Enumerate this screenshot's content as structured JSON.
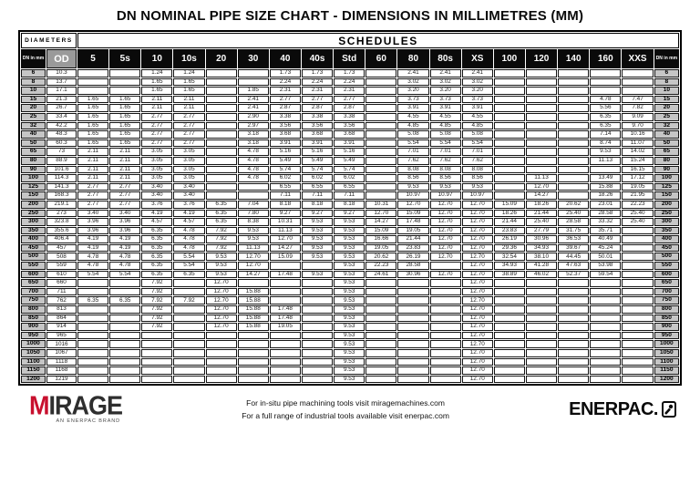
{
  "title": "DN NOMINAL PIPE SIZE CHART - DIMENSIONS IN MILLIMETRES (MM)",
  "table": {
    "diameters_label": "DIAMETERS",
    "schedules_label": "SCHEDULES",
    "dn_header": "DN in mm",
    "od_header": "OD",
    "schedule_headers": [
      "5",
      "5s",
      "10",
      "10s",
      "20",
      "30",
      "40",
      "40s",
      "Std",
      "60",
      "80",
      "80s",
      "XS",
      "100",
      "120",
      "140",
      "160",
      "XXS"
    ],
    "rows": [
      {
        "dn": "6",
        "od": "10.3",
        "v": [
          "",
          "",
          "1.24",
          "1.24",
          "",
          "",
          "1.73",
          "1.73",
          "1.73",
          "",
          "2.41",
          "2.41",
          "2.41",
          "",
          "",
          "",
          "",
          ""
        ]
      },
      {
        "dn": "8",
        "od": "13.7",
        "v": [
          "",
          "",
          "1.65",
          "1.65",
          "",
          "",
          "2.24",
          "2.24",
          "2.24",
          "",
          "3.02",
          "3.02",
          "3.02",
          "",
          "",
          "",
          "",
          ""
        ]
      },
      {
        "dn": "10",
        "od": "17.1",
        "v": [
          "",
          "",
          "1.65",
          "1.65",
          "",
          "1.85",
          "2.31",
          "2.31",
          "2.31",
          "",
          "3.20",
          "3.20",
          "3.20",
          "",
          "",
          "",
          "",
          ""
        ]
      },
      {
        "dn": "15",
        "od": "21.3",
        "v": [
          "1.65",
          "1.65",
          "2.11",
          "2.11",
          "",
          "2.41",
          "2.77",
          "2.77",
          "2.77",
          "",
          "3.73",
          "3.73",
          "3.73",
          "",
          "",
          "",
          "4.78",
          "7.47"
        ]
      },
      {
        "dn": "20",
        "od": "26.7",
        "v": [
          "1.65",
          "1.65",
          "2.11",
          "2.11",
          "",
          "2.41",
          "2.87",
          "2.87",
          "2.87",
          "",
          "3.91",
          "3.91",
          "3.91",
          "",
          "",
          "",
          "5.56",
          "7.82"
        ]
      },
      {
        "dn": "25",
        "od": "33.4",
        "v": [
          "1.65",
          "1.65",
          "2.77",
          "2.77",
          "",
          "2.90",
          "3.38",
          "3.38",
          "3.38",
          "",
          "4.55",
          "4.55",
          "4.55",
          "",
          "",
          "",
          "6.35",
          "9.09"
        ]
      },
      {
        "dn": "32",
        "od": "42.2",
        "v": [
          "1.65",
          "1.65",
          "2.77",
          "2.77",
          "",
          "2.97",
          "3.56",
          "3.56",
          "3.56",
          "",
          "4.85",
          "4.85",
          "4.85",
          "",
          "",
          "",
          "6.35",
          "9.70"
        ]
      },
      {
        "dn": "40",
        "od": "48.3",
        "v": [
          "1.65",
          "1.65",
          "2.77",
          "2.77",
          "",
          "3.18",
          "3.68",
          "3.68",
          "3.68",
          "",
          "5.08",
          "5.08",
          "5.08",
          "",
          "",
          "",
          "7.14",
          "10.16"
        ]
      },
      {
        "dn": "50",
        "od": "60.3",
        "v": [
          "1.65",
          "1.65",
          "2.77",
          "2.77",
          "",
          "3.18",
          "3.91",
          "3.91",
          "3.91",
          "",
          "5.54",
          "5.54",
          "5.54",
          "",
          "",
          "",
          "8.74",
          "11.07"
        ]
      },
      {
        "dn": "65",
        "od": "73",
        "v": [
          "2.11",
          "2.11",
          "3.05",
          "3.05",
          "",
          "4.78",
          "5.16",
          "5.16",
          "5.16",
          "",
          "7.01",
          "7.01",
          "7.01",
          "",
          "",
          "",
          "9.53",
          "14.02"
        ]
      },
      {
        "dn": "80",
        "od": "88.9",
        "v": [
          "2.11",
          "2.11",
          "3.05",
          "3.05",
          "",
          "4.78",
          "5.49",
          "5.49",
          "5.49",
          "",
          "7.62",
          "7.62",
          "7.62",
          "",
          "",
          "",
          "11.13",
          "15.24"
        ]
      },
      {
        "dn": "90",
        "od": "101.6",
        "v": [
          "2.11",
          "2.11",
          "3.05",
          "3.05",
          "",
          "4.78",
          "5.74",
          "5.74",
          "5.74",
          "",
          "8.08",
          "8.08",
          "8.08",
          "",
          "",
          "",
          "",
          "16.15"
        ]
      },
      {
        "dn": "100",
        "od": "114.3",
        "v": [
          "2.11",
          "2.11",
          "3.05",
          "3.05",
          "",
          "4.78",
          "6.02",
          "6.02",
          "6.02",
          "",
          "8.56",
          "8.56",
          "8.56",
          "",
          "11.13",
          "",
          "13.49",
          "17.12"
        ]
      },
      {
        "dn": "125",
        "od": "141.3",
        "v": [
          "2.77",
          "2.77",
          "3.40",
          "3.40",
          "",
          "",
          "6.55",
          "6.55",
          "6.55",
          "",
          "9.53",
          "9.53",
          "9.53",
          "",
          "12.70",
          "",
          "15.88",
          "19.05"
        ]
      },
      {
        "dn": "150",
        "od": "168.3",
        "v": [
          "2.77",
          "2.77",
          "3.40",
          "3.40",
          "",
          "",
          "7.11",
          "7.11",
          "7.11",
          "",
          "10.97",
          "10.97",
          "10.97",
          "",
          "14.27",
          "",
          "18.26",
          "21.95"
        ]
      },
      {
        "dn": "200",
        "od": "219.1",
        "v": [
          "2.77",
          "2.77",
          "3.76",
          "3.76",
          "6.35",
          "7.04",
          "8.18",
          "8.18",
          "8.18",
          "10.31",
          "12.70",
          "12.70",
          "12.70",
          "15.09",
          "18.26",
          "20.62",
          "23.01",
          "22.23"
        ]
      },
      {
        "dn": "250",
        "od": "273",
        "v": [
          "3.40",
          "3.40",
          "4.19",
          "4.19",
          "6.35",
          "7.80",
          "9.27",
          "9.27",
          "9.27",
          "12.70",
          "15.09",
          "12.70",
          "12.70",
          "18.26",
          "21.44",
          "25.40",
          "28.58",
          "25.40"
        ]
      },
      {
        "dn": "300",
        "od": "323.8",
        "v": [
          "3.96",
          "3.96",
          "4.57",
          "4.57",
          "6.35",
          "8.38",
          "10.31",
          "9.53",
          "9.53",
          "14.27",
          "17.48",
          "12.70",
          "12.70",
          "21.44",
          "25.40",
          "28.58",
          "33.32",
          "25.40"
        ]
      },
      {
        "dn": "350",
        "od": "355.6",
        "v": [
          "3.96",
          "3.96",
          "6.35",
          "4.78",
          "7.92",
          "9.53",
          "11.13",
          "9.53",
          "9.53",
          "15.09",
          "19.05",
          "12.70",
          "12.70",
          "23.83",
          "27.79",
          "31.75",
          "35.71",
          ""
        ]
      },
      {
        "dn": "400",
        "od": "406.4",
        "v": [
          "4.19",
          "4.19",
          "6.35",
          "4.78",
          "7.92",
          "9.53",
          "12.70",
          "9.53",
          "9.53",
          "16.66",
          "21.44",
          "12.70",
          "12.70",
          "26.19",
          "30.96",
          "36.53",
          "40.49",
          ""
        ]
      },
      {
        "dn": "450",
        "od": "457",
        "v": [
          "4.19",
          "4.19",
          "6.35",
          "4.78",
          "7.92",
          "11.13",
          "14.27",
          "9.53",
          "9.53",
          "19.05",
          "23.83",
          "12.70",
          "12.70",
          "29.36",
          "34.93",
          "39.67",
          "45.24",
          ""
        ]
      },
      {
        "dn": "500",
        "od": "508",
        "v": [
          "4.78",
          "4.78",
          "6.35",
          "5.54",
          "9.53",
          "12.70",
          "15.09",
          "9.53",
          "9.53",
          "20.62",
          "26.19",
          "12.70",
          "12.70",
          "32.54",
          "38.10",
          "44.45",
          "50.01",
          ""
        ]
      },
      {
        "dn": "550",
        "od": "559",
        "v": [
          "4.78",
          "4.78",
          "6.35",
          "5.54",
          "9.53",
          "12.70",
          "",
          "",
          "9.53",
          "22.23",
          "28.58",
          "",
          "12.70",
          "34.93",
          "41.28",
          "47.63",
          "53.98",
          ""
        ]
      },
      {
        "dn": "600",
        "od": "610",
        "v": [
          "5.54",
          "5.54",
          "6.35",
          "6.35",
          "9.53",
          "14.27",
          "17.48",
          "9.53",
          "9.53",
          "24.61",
          "30.96",
          "12.70",
          "12.70",
          "38.89",
          "46.02",
          "52.37",
          "59.54",
          ""
        ]
      },
      {
        "dn": "650",
        "od": "660",
        "v": [
          "",
          "",
          "7.92",
          "",
          "12.70",
          "",
          "",
          "",
          "9.53",
          "",
          "",
          "",
          "12.70",
          "",
          "",
          "",
          "",
          ""
        ]
      },
      {
        "dn": "700",
        "od": "711",
        "v": [
          "",
          "",
          "7.92",
          "",
          "12.70",
          "15.88",
          "",
          "",
          "9.53",
          "",
          "",
          "",
          "12.70",
          "",
          "",
          "",
          "",
          ""
        ]
      },
      {
        "dn": "750",
        "od": "762",
        "v": [
          "6.35",
          "6.35",
          "7.92",
          "7.92",
          "12.70",
          "15.88",
          "",
          "",
          "9.53",
          "",
          "",
          "",
          "12.70",
          "",
          "",
          "",
          "",
          ""
        ]
      },
      {
        "dn": "800",
        "od": "813",
        "v": [
          "",
          "",
          "7.92",
          "",
          "12.70",
          "15.88",
          "17.48",
          "",
          "9.53",
          "",
          "",
          "",
          "12.70",
          "",
          "",
          "",
          "",
          ""
        ]
      },
      {
        "dn": "850",
        "od": "864",
        "v": [
          "",
          "",
          "7.92",
          "",
          "12.70",
          "15.88",
          "17.48",
          "",
          "9.53",
          "",
          "",
          "",
          "12.70",
          "",
          "",
          "",
          "",
          ""
        ]
      },
      {
        "dn": "900",
        "od": "914",
        "v": [
          "",
          "",
          "7.92",
          "",
          "12.70",
          "15.88",
          "19.05",
          "",
          "9.53",
          "",
          "",
          "",
          "12.70",
          "",
          "",
          "",
          "",
          ""
        ]
      },
      {
        "dn": "950",
        "od": "965",
        "v": [
          "",
          "",
          "",
          "",
          "",
          "",
          "",
          "",
          "9.53",
          "",
          "",
          "",
          "12.70",
          "",
          "",
          "",
          "",
          ""
        ]
      },
      {
        "dn": "1000",
        "od": "1016",
        "v": [
          "",
          "",
          "",
          "",
          "",
          "",
          "",
          "",
          "9.53",
          "",
          "",
          "",
          "12.70",
          "",
          "",
          "",
          "",
          ""
        ]
      },
      {
        "dn": "1050",
        "od": "1067",
        "v": [
          "",
          "",
          "",
          "",
          "",
          "",
          "",
          "",
          "9.53",
          "",
          "",
          "",
          "12.70",
          "",
          "",
          "",
          "",
          ""
        ]
      },
      {
        "dn": "1100",
        "od": "1118",
        "v": [
          "",
          "",
          "",
          "",
          "",
          "",
          "",
          "",
          "9.53",
          "",
          "",
          "",
          "12.70",
          "",
          "",
          "",
          "",
          ""
        ]
      },
      {
        "dn": "1150",
        "od": "1168",
        "v": [
          "",
          "",
          "",
          "",
          "",
          "",
          "",
          "",
          "9.53",
          "",
          "",
          "",
          "12.70",
          "",
          "",
          "",
          "",
          ""
        ]
      },
      {
        "dn": "1200",
        "od": "1219",
        "v": [
          "",
          "",
          "",
          "",
          "",
          "",
          "",
          "",
          "9.53",
          "",
          "",
          "",
          "12.70",
          "",
          "",
          "",
          "",
          ""
        ]
      }
    ]
  },
  "footer": {
    "mirage_name": "MIRAGE",
    "mirage_sub": "AN ENERPAC BRAND",
    "line1": "For in-situ pipe machining tools visit miragemachines.com",
    "line2": "For a full range of industrial tools available visit enerpac.com",
    "enerpac_name": "ENERPAC."
  },
  "colors": {
    "mirage_red": "#c8102e",
    "header_bg": "#0a0a0a",
    "dn_cell_bg": "#c6c6c6",
    "od_header_bg": "#9a9a9a"
  },
  "icons": {
    "enerpac_symbol": "enerpac-man-icon"
  }
}
